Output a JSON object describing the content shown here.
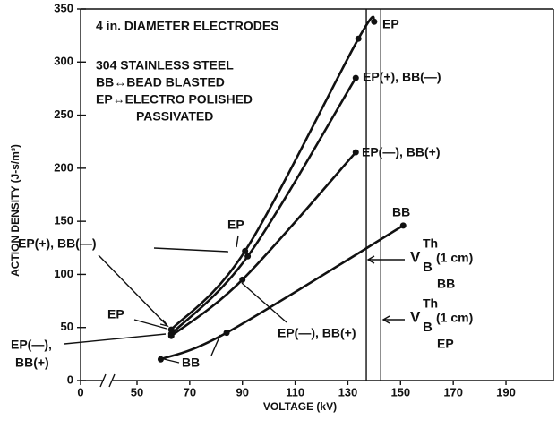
{
  "chart_data": {
    "type": "line",
    "xlabel": "VOLTAGE (kV)",
    "ylabel": "ACTION DENSITY (J-s/m³)",
    "xlim": [
      0,
      208
    ],
    "ylim": [
      0,
      350
    ],
    "xticks": [
      0,
      50,
      70,
      90,
      110,
      130,
      150,
      170,
      190
    ],
    "yticks": [
      0,
      50,
      100,
      150,
      200,
      250,
      300,
      350
    ],
    "x_axis_break": true,
    "color": "#111111",
    "series": [
      {
        "name": "EP",
        "x": [
          63,
          91,
          134,
          140
        ],
        "values": [
          48,
          122,
          322,
          338
        ]
      },
      {
        "name": "EP(+), BB(—)",
        "x": [
          63,
          92,
          133
        ],
        "values": [
          44,
          117,
          285
        ]
      },
      {
        "name": "EP(—), BB(+)",
        "x": [
          63,
          90,
          133
        ],
        "values": [
          42,
          95,
          215
        ]
      },
      {
        "name": "BB",
        "x": [
          59,
          84,
          151
        ],
        "values": [
          20,
          45,
          146
        ]
      }
    ],
    "reference_lines": [
      {
        "x": 137,
        "symbol": "V",
        "subscript": "B",
        "superscript": "Th",
        "text": "(1 cm)",
        "label": "BB"
      },
      {
        "x": 142.5,
        "symbol": "V",
        "subscript": "B",
        "superscript": "Th",
        "text": "(1 cm)",
        "label": "EP"
      }
    ],
    "notes": [
      "4 in. DIAMETER ELECTRODES",
      "304 STAINLESS STEEL",
      "BB↔BEAD BLASTED",
      "EP↔ELECTRO POLISHED",
      "PASSIVATED"
    ],
    "annotations": [
      "EP",
      "EP(+), BB(—)",
      "EP",
      "EP(—),",
      "BB(+)",
      "BB",
      "EP(—), BB(+)"
    ]
  }
}
